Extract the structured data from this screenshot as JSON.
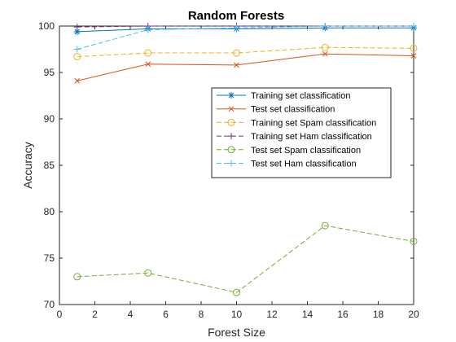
{
  "chart_data": {
    "type": "line",
    "title": "Random Forests",
    "xlabel": "Forest Size",
    "ylabel": "Accuracy",
    "xlim": [
      0,
      20
    ],
    "ylim": [
      70,
      100
    ],
    "xticks": [
      0,
      2,
      4,
      6,
      8,
      10,
      12,
      14,
      16,
      18,
      20
    ],
    "yticks": [
      70,
      75,
      80,
      85,
      90,
      95,
      100
    ],
    "grid": false,
    "legend_position": "upper-right inside",
    "x": [
      1,
      5,
      10,
      15,
      20
    ],
    "series": [
      {
        "name": "Training set classification",
        "values": [
          99.4,
          99.7,
          99.7,
          99.8,
          99.8
        ],
        "color": "#0072BD",
        "marker": "asterisk",
        "dash": "solid"
      },
      {
        "name": "Test set classification",
        "values": [
          94.1,
          95.9,
          95.8,
          97.0,
          96.8
        ],
        "color": "#D95319",
        "marker": "x",
        "dash": "solid"
      },
      {
        "name": "Training set Spam classification",
        "values": [
          96.7,
          97.1,
          97.1,
          97.7,
          97.6
        ],
        "color": "#EDB120",
        "marker": "circle",
        "dash": "dashed"
      },
      {
        "name": "Training set Ham classification",
        "values": [
          99.9,
          100.0,
          100.0,
          100.0,
          100.0
        ],
        "color": "#7E2F8E",
        "marker": "plus",
        "dash": "dashed"
      },
      {
        "name": "Test set Spam classification",
        "values": [
          73.0,
          73.4,
          71.3,
          78.5,
          76.8
        ],
        "color": "#77AC30",
        "marker": "circle",
        "dash": "dashed"
      },
      {
        "name": "Test set Ham classification",
        "values": [
          97.5,
          99.6,
          99.8,
          100.0,
          100.0
        ],
        "color": "#4DBEEE",
        "marker": "plus",
        "dash": "dashed"
      }
    ]
  }
}
